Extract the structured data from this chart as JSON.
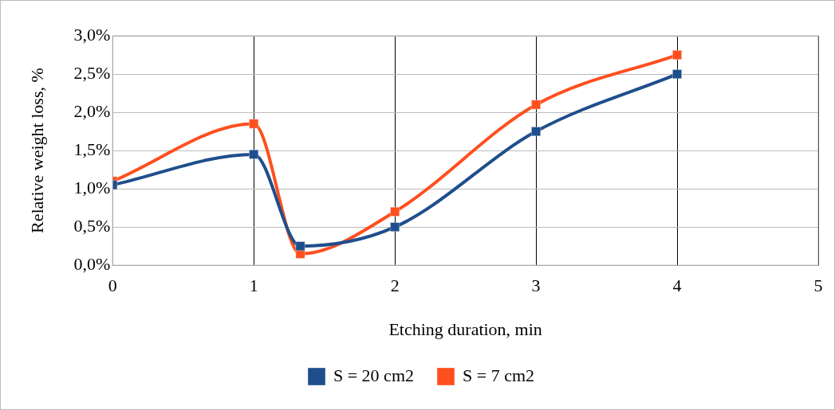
{
  "chart_data": {
    "type": "line",
    "xlabel": "Etching duration, min",
    "ylabel": "Relative weight loss, %",
    "x": [
      0,
      1,
      1.33,
      2,
      3,
      4
    ],
    "series": [
      {
        "name": "S = 20 cm2",
        "color": "#1f4e8c",
        "values": [
          1.05,
          1.45,
          0.25,
          0.5,
          1.75,
          2.5
        ]
      },
      {
        "name": "S = 7 cm2",
        "color": "#ff4f1f",
        "values": [
          1.1,
          1.85,
          0.15,
          0.7,
          2.1,
          2.75
        ]
      }
    ],
    "xlim": [
      0,
      5
    ],
    "xticks": [
      0,
      1,
      2,
      3,
      4,
      5
    ],
    "ylim": [
      0,
      3
    ],
    "yticks": [
      {
        "value": 0,
        "label": "0,0%"
      },
      {
        "value": 0.5,
        "label": "0,5%"
      },
      {
        "value": 1,
        "label": "1,0%"
      },
      {
        "value": 1.5,
        "label": "1,5%"
      },
      {
        "value": 2,
        "label": "2,0%"
      },
      {
        "value": 2.5,
        "label": "2,5%"
      },
      {
        "value": 3,
        "label": "3,0%"
      }
    ],
    "grid": true,
    "legend": "bottom",
    "marker": "square",
    "line_style": "solid"
  }
}
